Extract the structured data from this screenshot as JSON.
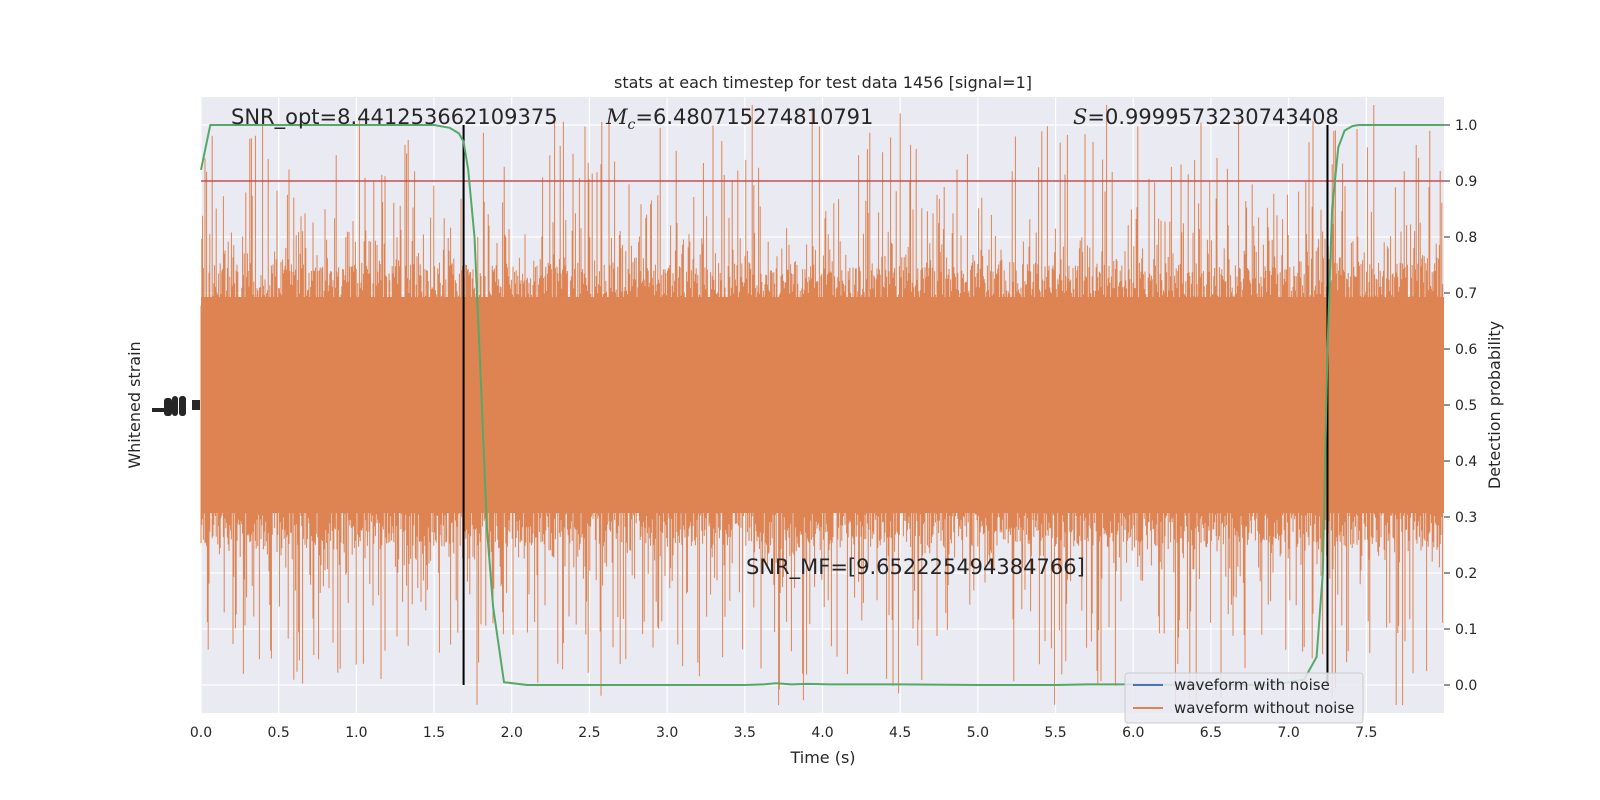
{
  "chart_data": {
    "type": "line",
    "title": "stats at each timestep for test data 1456 [signal=1]",
    "xlabel": "Time (s)",
    "ylabel_left": "Whitened strain",
    "ylabel_right": "Detection probability",
    "xlim": [
      0.0,
      8.0
    ],
    "ylim_right": [
      -0.05,
      1.05
    ],
    "x_ticks": [
      0.0,
      0.5,
      1.0,
      1.5,
      2.0,
      2.5,
      3.0,
      3.5,
      4.0,
      4.5,
      5.0,
      5.5,
      6.0,
      6.5,
      7.0,
      7.5
    ],
    "x_tick_labels": [
      "0.0",
      "0.5",
      "1.0",
      "1.5",
      "2.0",
      "2.5",
      "3.0",
      "3.5",
      "4.0",
      "4.5",
      "5.0",
      "5.5",
      "6.0",
      "6.5",
      "7.0",
      "7.5"
    ],
    "y_right_ticks": [
      0.0,
      0.1,
      0.2,
      0.3,
      0.4,
      0.5,
      0.6,
      0.7,
      0.8,
      0.9,
      1.0
    ],
    "y_right_tick_labels": [
      "0.0",
      "0.1",
      "0.2",
      "0.3",
      "0.4",
      "0.5",
      "0.6",
      "0.7",
      "0.8",
      "0.9",
      "1.0"
    ],
    "grid": true,
    "legend_position": "bottom-right",
    "annotations": {
      "snr_opt": "SNR_opt=8.441253662109375",
      "mc_symbol": "M",
      "mc_subscript": "c",
      "mc_value": "=6.480715274810791",
      "s_symbol": "S",
      "s_value": "=0.9999573230743408",
      "snr_mf": "SNR_MF=[9.652225494384766]"
    },
    "vertical_lines_x": [
      1.69,
      7.25
    ],
    "threshold_y": 0.9,
    "series": [
      {
        "name": "waveform with noise",
        "color": "#4c72b0"
      },
      {
        "name": "waveform without noise",
        "color": "#dd8452"
      },
      {
        "color": "#55a868",
        "x": [
          0.0,
          0.06,
          0.12,
          0.25,
          0.5,
          0.75,
          1.0,
          1.25,
          1.5,
          1.6,
          1.66,
          1.69,
          1.72,
          1.76,
          1.8,
          1.84,
          1.88,
          1.95,
          2.1,
          2.5,
          3.0,
          3.5,
          3.62,
          3.7,
          3.8,
          3.9,
          4.05,
          4.5,
          5.0,
          5.5,
          5.7,
          6.0,
          6.5,
          6.9,
          7.1,
          7.18,
          7.22,
          7.25,
          7.28,
          7.32,
          7.36,
          7.41,
          7.45,
          7.6,
          8.0
        ],
        "y": [
          0.92,
          1.0,
          1.0,
          1.0,
          1.0,
          1.0,
          1.0,
          1.0,
          1.0,
          0.995,
          0.985,
          0.97,
          0.92,
          0.8,
          0.55,
          0.28,
          0.14,
          0.005,
          0.0,
          0.0,
          0.0,
          0.0,
          0.001,
          0.003,
          0.001,
          0.002,
          0.001,
          0.001,
          0.0,
          0.0,
          0.001,
          0.001,
          0.0,
          0.0,
          0.01,
          0.05,
          0.2,
          0.6,
          0.85,
          0.96,
          0.99,
          0.998,
          1.0,
          1.0,
          1.0
        ]
      }
    ]
  }
}
